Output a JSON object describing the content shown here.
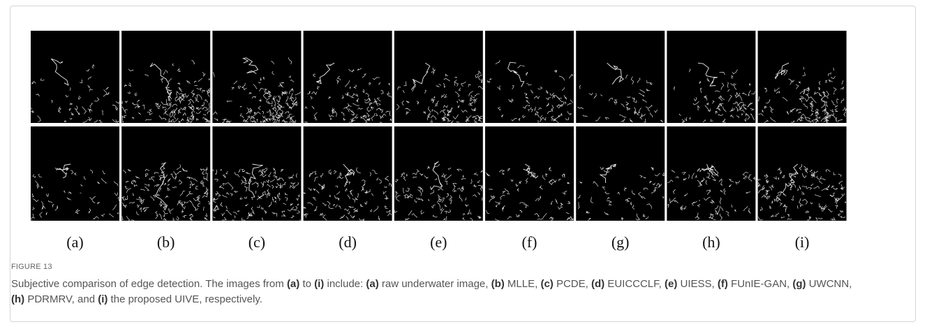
{
  "figure": {
    "panels": [
      "(a)",
      "(b)",
      "(c)",
      "(d)",
      "(e)",
      "(f)",
      "(g)",
      "(h)",
      "(i)"
    ],
    "label": "FIGURE 13",
    "caption": [
      {
        "text": "Subjective comparison of edge detection. The images from ",
        "bold": false
      },
      {
        "text": "(a)",
        "bold": true
      },
      {
        "text": " to ",
        "bold": false
      },
      {
        "text": "(i)",
        "bold": true
      },
      {
        "text": " include: ",
        "bold": false
      },
      {
        "text": "(a)",
        "bold": true
      },
      {
        "text": " raw underwater image, ",
        "bold": false
      },
      {
        "text": "(b)",
        "bold": true
      },
      {
        "text": " MLLE, ",
        "bold": false
      },
      {
        "text": "(c)",
        "bold": true
      },
      {
        "text": " PCDE, ",
        "bold": false
      },
      {
        "text": "(d)",
        "bold": true
      },
      {
        "text": " EUICCCLF, ",
        "bold": false
      },
      {
        "text": "(e)",
        "bold": true
      },
      {
        "text": " UIESS, ",
        "bold": false
      },
      {
        "text": "(f)",
        "bold": true
      },
      {
        "text": " FUnIE-GAN, ",
        "bold": false
      },
      {
        "text": "(g)",
        "bold": true
      },
      {
        "text": " UWCNN, ",
        "bold": false
      },
      {
        "text": "(h)",
        "bold": true
      },
      {
        "text": " PDRMRV, and ",
        "bold": false
      },
      {
        "text": "(i)",
        "bold": true
      },
      {
        "text": " the proposed UIVE, respectively.",
        "bold": false
      }
    ]
  }
}
